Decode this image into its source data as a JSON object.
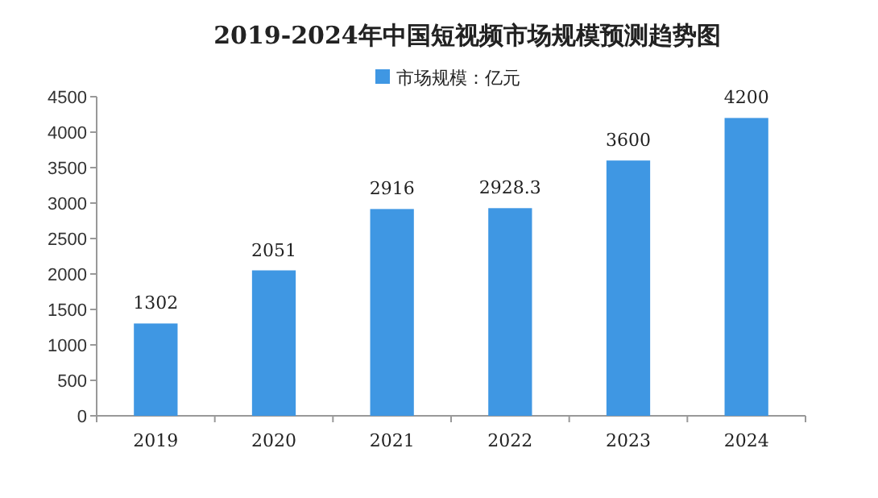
{
  "chart_data": {
    "type": "bar",
    "title": "2019-2024年中国短视频市场规模预测趋势图",
    "categories": [
      "2019",
      "2020",
      "2021",
      "2022",
      "2023",
      "2024"
    ],
    "series": [
      {
        "name": "市场规模：亿元",
        "color": "#3f97e3",
        "values": [
          1302,
          2051,
          2916,
          2928.3,
          3600,
          4200
        ]
      }
    ],
    "ylim": [
      0,
      4500
    ],
    "yticks": [
      0,
      500,
      1000,
      1500,
      2000,
      2500,
      3000,
      3500,
      4000,
      4500
    ],
    "data_labels": true,
    "legend": "top",
    "grid": false
  }
}
